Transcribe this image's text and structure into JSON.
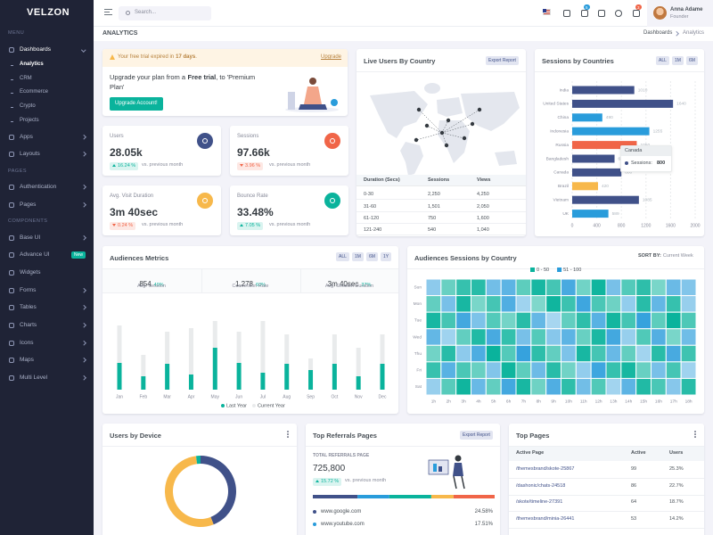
{
  "sidebar": {
    "logo": "VELZON",
    "menu": {
      "heading": "MENU",
      "items": [
        {
          "label": "Dashboards",
          "children": [
            "Analytics",
            "CRM",
            "Ecommerce",
            "Crypto",
            "Projects"
          ]
        },
        {
          "label": "Apps"
        },
        {
          "label": "Layouts"
        }
      ]
    },
    "pages": {
      "heading": "PAGES",
      "items": [
        {
          "label": "Authentication"
        },
        {
          "label": "Pages"
        }
      ]
    },
    "components": {
      "heading": "COMPONENTS",
      "items": [
        {
          "label": "Base UI"
        },
        {
          "label": "Advance UI",
          "badge": "New"
        },
        {
          "label": "Widgets"
        },
        {
          "label": "Forms"
        },
        {
          "label": "Tables"
        },
        {
          "label": "Charts"
        },
        {
          "label": "Icons"
        },
        {
          "label": "Maps"
        },
        {
          "label": "Multi Level"
        }
      ]
    }
  },
  "header": {
    "search_placeholder": "Search...",
    "cart_count": 5,
    "notification_count": 3,
    "user": {
      "name": "Anna Adame",
      "role": "Founder"
    }
  },
  "breadcrumb": {
    "title": "ANALYTICS",
    "items": [
      "Dashboards",
      "Analytics"
    ]
  },
  "trial": {
    "notice": [
      "Your free trial expired in",
      "17 days",
      "."
    ],
    "link": "Upgrade",
    "message": [
      "Upgrade your plan from a",
      "Free trial",
      ", to 'Premium Plan'"
    ],
    "button": "Upgrade Account!"
  },
  "stats": [
    {
      "title": "Users",
      "value": "28.05k",
      "change": "16.24 %",
      "trend": "up",
      "note": "vs. previous month",
      "color": "#405189"
    },
    {
      "title": "Sessions",
      "value": "97.66k",
      "change": "3.96 %",
      "trend": "down",
      "note": "vs. previous month",
      "color": "#f06548"
    },
    {
      "title": "Avg. Visit Duration",
      "value": "3m 40sec",
      "change": "0.24 %",
      "trend": "down",
      "note": "vs. previous month",
      "color": "#f7b84b"
    },
    {
      "title": "Bounce Rate",
      "value": "33.48%",
      "change": "7.05 %",
      "trend": "up",
      "note": "vs. previous month",
      "color": "#0ab39c"
    }
  ],
  "live_users": {
    "title": "Live Users By Country",
    "button": "Export Report",
    "table": {
      "headers": [
        "Duration (Secs)",
        "Sessions",
        "Views"
      ],
      "rows": [
        [
          "0-30",
          "2,250",
          "4,250"
        ],
        [
          "31-60",
          "1,501",
          "2,050"
        ],
        [
          "61-120",
          "750",
          "1,600"
        ],
        [
          "121-240",
          "540",
          "1,040"
        ]
      ]
    }
  },
  "sessions_by_countries": {
    "type": "bar",
    "horizontal": true,
    "title": "Sessions by Countries",
    "filters": [
      "ALL",
      "1M",
      "6M"
    ],
    "categories": [
      "India",
      "United States",
      "China",
      "Indonesia",
      "Russia",
      "Bangladesh",
      "Canada",
      "Brazil",
      "Vietnam",
      "UK"
    ],
    "values": [
      1010,
      1640,
      490,
      1255,
      1050,
      689,
      800,
      420,
      1085,
      589
    ],
    "colors": [
      "#405189",
      "#405189",
      "#299cdb",
      "#299cdb",
      "#f06548",
      "#405189",
      "#405189",
      "#f7b84b",
      "#405189",
      "#299cdb"
    ],
    "xlim": [
      0,
      2000
    ],
    "xticks": [
      0,
      400,
      800,
      1200,
      1600,
      2000
    ],
    "grid": true,
    "tooltip": {
      "title": "Canada",
      "label": "Sessions:",
      "value": 800
    }
  },
  "audiences_metrics": {
    "type": "bar",
    "stacked": true,
    "title": "Audiences Metrics",
    "filters": [
      "ALL",
      "1M",
      "6M",
      "1Y"
    ],
    "summary": [
      {
        "value": "854",
        "change": "49%",
        "label": "Avg. Session"
      },
      {
        "value": "1,278",
        "change": "60%",
        "label": "Conversion Rate"
      },
      {
        "value": "3m 40sec",
        "change": "37%",
        "label": "Avg. Session Duration"
      }
    ],
    "categories": [
      "Jan",
      "Feb",
      "Mar",
      "Apr",
      "May",
      "Jun",
      "Jul",
      "Aug",
      "Sep",
      "Oct",
      "Nov",
      "Dec"
    ],
    "series": [
      {
        "name": "Last Year",
        "color": "#0ab39c",
        "values": [
          30,
          15,
          29,
          17,
          47,
          30,
          19,
          29,
          22,
          29,
          15,
          29
        ]
      },
      {
        "name": "Current Year",
        "color": "#e9ebec",
        "values": [
          42,
          24,
          36,
          52,
          30,
          35,
          58,
          33,
          13,
          33,
          32,
          33
        ]
      }
    ],
    "ylim": [
      0,
      80
    ]
  },
  "audiences_sessions": {
    "type": "heatmap",
    "title": "Audiences Sessions by Country",
    "sort_label": "SORT BY:",
    "sort_value": "Current Week",
    "rows": [
      "Sun",
      "Mon",
      "Tue",
      "Wed",
      "Thu",
      "Fri",
      "Sat"
    ],
    "columns": [
      "1h",
      "2h",
      "3h",
      "4h",
      "5h",
      "6h",
      "7h",
      "8h",
      "9h",
      "10h",
      "11h",
      "12h",
      "13h",
      "14h",
      "15h",
      "16h",
      "17h",
      "18h"
    ],
    "ranges": [
      {
        "from": 0,
        "to": 50,
        "name": "0 - 50",
        "color": "#0ab39c"
      },
      {
        "from": 51,
        "to": 100,
        "name": "51 - 100",
        "color": "#299cdb"
      }
    ],
    "values": [
      [
        62,
        18,
        35,
        40,
        72,
        80,
        22,
        45,
        30,
        88,
        15,
        48,
        70,
        25,
        38,
        12,
        75,
        66
      ],
      [
        20,
        70,
        45,
        12,
        30,
        85,
        55,
        10,
        48,
        33,
        92,
        28,
        16,
        60,
        40,
        78,
        35,
        58
      ],
      [
        45,
        30,
        90,
        68,
        25,
        14,
        40,
        77,
        52,
        20,
        38,
        82,
        47,
        30,
        95,
        22,
        50,
        27
      ],
      [
        78,
        55,
        20,
        42,
        88,
        36,
        70,
        25,
        64,
        80,
        18,
        44,
        90,
        58,
        26,
        84,
        12,
        73
      ],
      [
        15,
        40,
        62,
        86,
        50,
        25,
        95,
        38,
        20,
        68,
        45,
        30,
        76,
        20,
        54,
        40,
        88,
        32
      ],
      [
        35,
        82,
        28,
        18,
        66,
        48,
        22,
        74,
        40,
        15,
        60,
        92,
        35,
        46,
        18,
        70,
        30,
        55
      ],
      [
        58,
        24,
        48,
        76,
        20,
        90,
        45,
        16,
        85,
        38,
        72,
        26,
        54,
        80,
        42,
        28,
        64,
        40
      ]
    ]
  },
  "users_by_device": {
    "type": "donut",
    "title": "Users by Device",
    "values": [
      44,
      54,
      2
    ],
    "colors": [
      "#405189",
      "#f7b84b",
      "#0ab39c"
    ]
  },
  "top_referrals": {
    "title": "Top Referrals Pages",
    "button": "Export Report",
    "total_label": "TOTAL REFERRALS PAGE",
    "total": "725,800",
    "change": "15.72 %",
    "note": "vs. previous month",
    "segments": [
      24.58,
      17.51,
      23.05,
      12.22,
      22.63
    ],
    "colors": [
      "#405189",
      "#299cdb",
      "#0ab39c",
      "#f7b84b",
      "#f06548"
    ],
    "sites": [
      {
        "name": "www.google.com",
        "share": "24.58%"
      },
      {
        "name": "www.youtube.com",
        "share": "17.51%"
      }
    ]
  },
  "top_pages": {
    "title": "Top Pages",
    "headers": [
      "Active Page",
      "Active",
      "Users"
    ],
    "rows": [
      [
        "/themesbrand/skote-25867",
        "99",
        "25.3%"
      ],
      [
        "/dashonic/chats-24518",
        "86",
        "22.7%"
      ],
      [
        "/skote/timeline-27391",
        "64",
        "18.7%"
      ],
      [
        "/themesbrand/minia-26441",
        "53",
        "14.2%"
      ]
    ]
  }
}
